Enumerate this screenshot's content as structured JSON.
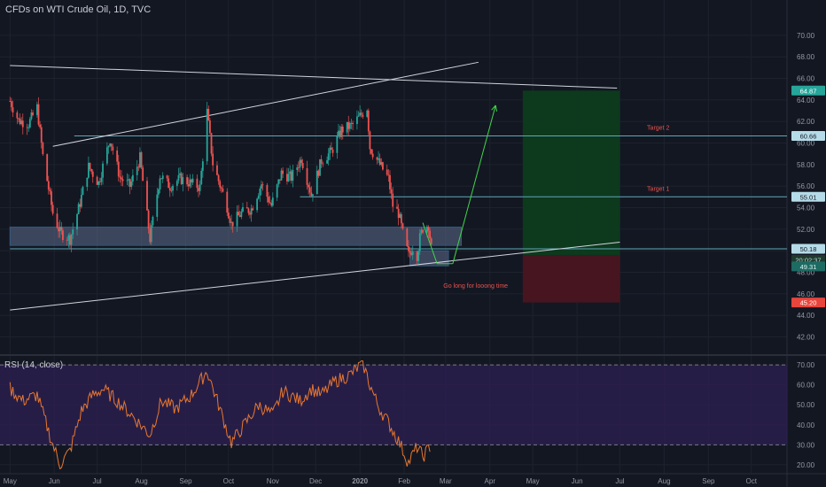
{
  "header": {
    "title": "CFDs on WTI Crude Oil, 1D, TVC"
  },
  "rsi_panel": {
    "title": "RSI (14, close)"
  },
  "colors": {
    "background": "#131722",
    "up_candle": "#26a69a",
    "down_candle": "#ef5350",
    "rsi_line": "#e8772e",
    "rsi_band": "#2a1f4d",
    "target_zone": "#0d3b1e",
    "stop_zone": "#4a1520",
    "support_zone": "#5d6b8c",
    "trend_lines": "#d1d4dc",
    "arrow": "#3fd64a"
  },
  "chart_data": [
    {
      "type": "candlestick",
      "symbol": "WTI Crude Oil",
      "timeframe": "1D",
      "x_labels": [
        "May",
        "Jun",
        "Jul",
        "Aug",
        "Sep",
        "Oct",
        "Nov",
        "Dec",
        "2020",
        "Feb",
        "Mar",
        "Apr",
        "May",
        "Jun",
        "Jul",
        "Aug",
        "Sep",
        "Oct"
      ],
      "y_ticks": [
        42,
        44,
        46,
        48,
        50,
        52,
        54,
        56,
        58,
        60,
        62,
        64,
        66,
        68,
        70
      ],
      "ylim": [
        40.4,
        71.8
      ],
      "price_path": [
        [
          "2019-05-01",
          63.9
        ],
        [
          "2019-05-07",
          62.1
        ],
        [
          "2019-05-14",
          61.8
        ],
        [
          "2019-05-20",
          63.3
        ],
        [
          "2019-05-24",
          58.8
        ],
        [
          "2019-05-31",
          53.5
        ],
        [
          "2019-06-05",
          51.7
        ],
        [
          "2019-06-12",
          51.1
        ],
        [
          "2019-06-18",
          53.9
        ],
        [
          "2019-06-25",
          57.8
        ],
        [
          "2019-07-02",
          56.3
        ],
        [
          "2019-07-10",
          60.4
        ],
        [
          "2019-07-17",
          56.8
        ],
        [
          "2019-07-24",
          56.0
        ],
        [
          "2019-07-31",
          58.6
        ],
        [
          "2019-08-07",
          51.1
        ],
        [
          "2019-08-14",
          57.0
        ],
        [
          "2019-08-21",
          56.0
        ],
        [
          "2019-08-28",
          56.7
        ],
        [
          "2019-09-04",
          56.3
        ],
        [
          "2019-09-11",
          55.9
        ],
        [
          "2019-09-16",
          62.9
        ],
        [
          "2019-09-20",
          58.1
        ],
        [
          "2019-09-30",
          54.1
        ],
        [
          "2019-10-03",
          52.5
        ],
        [
          "2019-10-10",
          53.5
        ],
        [
          "2019-10-17",
          53.9
        ],
        [
          "2019-10-24",
          56.2
        ],
        [
          "2019-10-31",
          54.2
        ],
        [
          "2019-11-07",
          57.2
        ],
        [
          "2019-11-14",
          56.8
        ],
        [
          "2019-11-21",
          58.6
        ],
        [
          "2019-11-28",
          55.2
        ],
        [
          "2019-12-05",
          58.4
        ],
        [
          "2019-12-12",
          59.2
        ],
        [
          "2019-12-19",
          61.2
        ],
        [
          "2019-12-27",
          61.7
        ],
        [
          "2020-01-06",
          63.3
        ],
        [
          "2020-01-08",
          59.6
        ],
        [
          "2020-01-14",
          58.2
        ],
        [
          "2020-01-21",
          56.7
        ],
        [
          "2020-01-24",
          54.2
        ],
        [
          "2020-01-28",
          53.5
        ],
        [
          "2020-01-31",
          51.6
        ],
        [
          "2020-02-04",
          49.6
        ],
        [
          "2020-02-07",
          50.3
        ],
        [
          "2020-02-10",
          49.6
        ],
        [
          "2020-02-12",
          51.2
        ],
        [
          "2020-02-14",
          52.1
        ],
        [
          "2020-02-18",
          52.4
        ],
        [
          "2020-02-20",
          50.2
        ]
      ],
      "support_zones": [
        {
          "from": "2019-05-01",
          "to": "2020-03-12",
          "low": 50.5,
          "high": 52.2
        },
        {
          "from": "2020-02-05",
          "to": "2020-03-03",
          "low": 48.6,
          "high": 50.0
        }
      ],
      "trend_lines": [
        {
          "from": [
            "2019-05-01",
            67.2
          ],
          "to": [
            "2020-06-29",
            65.1
          ]
        },
        {
          "from": [
            "2019-05-31",
            59.7
          ],
          "to": [
            "2020-03-24",
            67.5
          ]
        },
        {
          "from": [
            "2019-05-01",
            44.5
          ],
          "to": [
            "2020-07-01",
            50.8
          ]
        }
      ],
      "horizontal_levels": [
        {
          "from": "2019-06-15",
          "to": "2020-10-31",
          "price": 60.66,
          "label": "Target 2"
        },
        {
          "from": "2019-11-20",
          "to": "2020-10-31",
          "price": 55.01,
          "label": "Target 1"
        },
        {
          "from": "2019-05-01",
          "to": "2020-10-31",
          "price": 50.18
        }
      ],
      "position": {
        "from": "2020-04-24",
        "to": "2020-07-01",
        "entry": 49.6,
        "target": 64.87,
        "stop": 45.2
      },
      "arrow": {
        "from": [
          "2020-03-06",
          48.8
        ],
        "to": [
          "2020-04-05",
          63.5
        ]
      },
      "annotation": {
        "text": "Go long for looong time",
        "at": [
          "2020-03-22",
          46.8
        ]
      },
      "price_labels": [
        {
          "value": "64.87",
          "price": 64.87,
          "style": "target"
        },
        {
          "value": "60.66",
          "price": 60.66,
          "style": "level"
        },
        {
          "value": "55.01",
          "price": 55.01,
          "style": "level"
        },
        {
          "value": "50.18",
          "price": 50.18,
          "style": "level"
        },
        {
          "value": "20:02:37",
          "price": 49.15,
          "style": "timer"
        },
        {
          "value": "49.31",
          "price": 48.55,
          "style": "current"
        },
        {
          "value": "45.20",
          "price": 45.2,
          "style": "stop"
        }
      ]
    },
    {
      "type": "line",
      "name": "RSI (14, close)",
      "y_ticks": [
        20,
        30,
        40,
        50,
        60,
        70
      ],
      "ylim": [
        15.5,
        74.5
      ],
      "overbought": 70,
      "oversold": 30,
      "rsi_path": [
        [
          "2019-05-01",
          58
        ],
        [
          "2019-05-10",
          52
        ],
        [
          "2019-05-20",
          55
        ],
        [
          "2019-05-31",
          30
        ],
        [
          "2019-06-05",
          20
        ],
        [
          "2019-06-12",
          27
        ],
        [
          "2019-06-20",
          47
        ],
        [
          "2019-06-28",
          55
        ],
        [
          "2019-07-05",
          58
        ],
        [
          "2019-07-15",
          52
        ],
        [
          "2019-07-25",
          45
        ],
        [
          "2019-08-07",
          35
        ],
        [
          "2019-08-15",
          52
        ],
        [
          "2019-08-25",
          48
        ],
        [
          "2019-09-05",
          55
        ],
        [
          "2019-09-16",
          67
        ],
        [
          "2019-09-24",
          50
        ],
        [
          "2019-10-03",
          31
        ],
        [
          "2019-10-12",
          40
        ],
        [
          "2019-10-22",
          50
        ],
        [
          "2019-11-01",
          45
        ],
        [
          "2019-11-08",
          57
        ],
        [
          "2019-11-20",
          52
        ],
        [
          "2019-11-28",
          58
        ],
        [
          "2019-12-05",
          55
        ],
        [
          "2019-12-15",
          62
        ],
        [
          "2019-12-25",
          65
        ],
        [
          "2020-01-03",
          71
        ],
        [
          "2020-01-08",
          60
        ],
        [
          "2020-01-14",
          49
        ],
        [
          "2020-01-21",
          41
        ],
        [
          "2020-01-28",
          32
        ],
        [
          "2020-02-04",
          21
        ],
        [
          "2020-02-10",
          29
        ],
        [
          "2020-02-14",
          24
        ],
        [
          "2020-02-20",
          30
        ]
      ]
    }
  ]
}
